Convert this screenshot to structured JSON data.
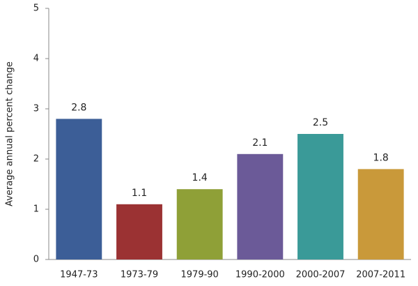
{
  "chart_data": {
    "type": "bar",
    "y_label": "Average annual percent change",
    "categories": [
      "1947-73",
      "1973-79",
      "1979-90",
      "1990-2000",
      "2000-2007",
      "2007-2011"
    ],
    "values": [
      2.8,
      1.1,
      1.4,
      2.1,
      2.5,
      1.8
    ],
    "colors": [
      "#3c5e97",
      "#9b3233",
      "#8fa037",
      "#6b5a98",
      "#3a9a98",
      "#c9993a"
    ],
    "ylim": [
      0,
      5
    ],
    "yticks": [
      0,
      1,
      2,
      3,
      4,
      5
    ],
    "grid": false
  }
}
